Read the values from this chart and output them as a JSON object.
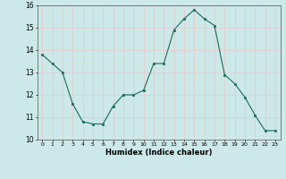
{
  "x": [
    0,
    1,
    2,
    3,
    4,
    5,
    6,
    7,
    8,
    9,
    10,
    11,
    12,
    13,
    14,
    15,
    16,
    17,
    18,
    19,
    20,
    21,
    22,
    23
  ],
  "y": [
    13.8,
    13.4,
    13.0,
    11.6,
    10.8,
    10.7,
    10.7,
    11.5,
    12.0,
    12.0,
    12.2,
    13.4,
    13.4,
    14.9,
    15.4,
    15.8,
    15.4,
    15.1,
    12.9,
    12.5,
    11.9,
    11.1,
    10.4,
    10.4
  ],
  "xlabel": "Humidex (Indice chaleur)",
  "ylim": [
    10,
    16
  ],
  "xlim": [
    -0.5,
    23.5
  ],
  "yticks": [
    10,
    11,
    12,
    13,
    14,
    15,
    16
  ],
  "xticks": [
    0,
    1,
    2,
    3,
    4,
    5,
    6,
    7,
    8,
    9,
    10,
    11,
    12,
    13,
    14,
    15,
    16,
    17,
    18,
    19,
    20,
    21,
    22,
    23
  ],
  "xtick_labels": [
    "0",
    "1",
    "2",
    "3",
    "4",
    "5",
    "6",
    "7",
    "8",
    "9",
    "10",
    "11",
    "12",
    "13",
    "14",
    "15",
    "16",
    "17",
    "18",
    "19",
    "20",
    "21",
    "22",
    "23"
  ],
  "line_color": "#1a6b5a",
  "marker_color": "#1a6b5a",
  "bg_color": "#cce8e8",
  "grid_color": "#e8c8c8",
  "title": ""
}
